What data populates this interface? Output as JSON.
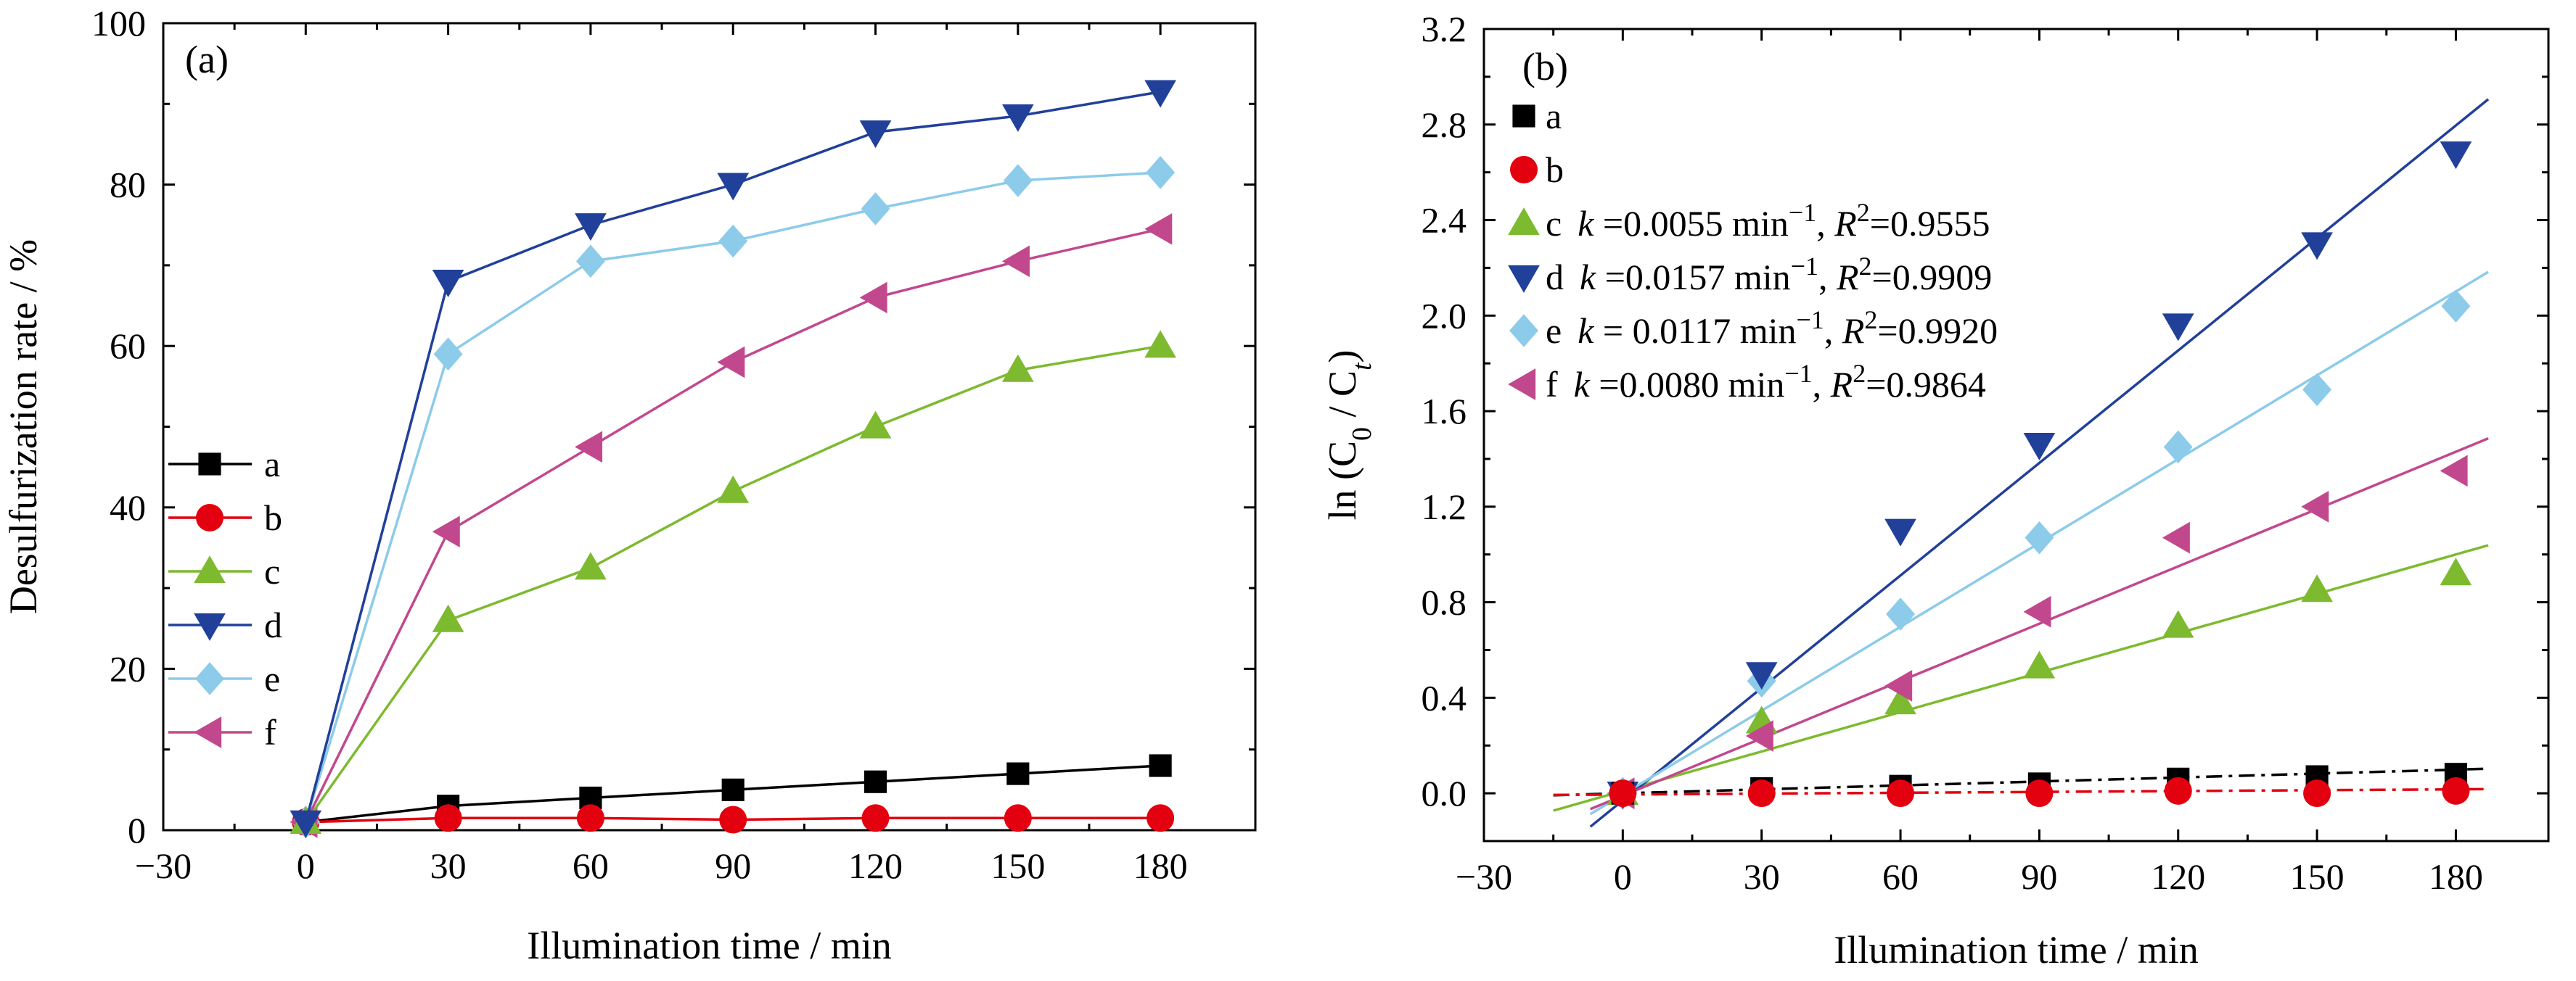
{
  "chart_data": [
    {
      "type": "line",
      "panel_label": "(a)",
      "xlabel": "Illumination time / min",
      "ylabel": "Desulfurization rate / %",
      "xlim": [
        -30,
        200
      ],
      "ylim": [
        0,
        100
      ],
      "xticks": [
        -30,
        0,
        30,
        60,
        90,
        120,
        150,
        180
      ],
      "yticks": [
        0,
        20,
        40,
        60,
        80,
        100
      ],
      "legend_position": "left",
      "x": [
        0,
        30,
        60,
        90,
        120,
        150,
        180
      ],
      "series": [
        {
          "name": "a",
          "color": "#000000",
          "marker": "square",
          "values": [
            1.0,
            3.0,
            4.0,
            5.0,
            6.0,
            7.0,
            8.0
          ]
        },
        {
          "name": "b",
          "color": "#e3000f",
          "marker": "circle",
          "values": [
            1.0,
            1.5,
            1.5,
            1.3,
            1.5,
            1.5,
            1.5
          ]
        },
        {
          "name": "c",
          "color": "#7dba2f",
          "marker": "triangle-up",
          "values": [
            1.0,
            26.0,
            32.5,
            42.0,
            50.0,
            57.0,
            60.0
          ]
        },
        {
          "name": "d",
          "color": "#21409a",
          "marker": "triangle-down",
          "values": [
            1.0,
            68.0,
            75.0,
            80.0,
            86.5,
            88.5,
            91.5
          ]
        },
        {
          "name": "e",
          "color": "#8ccbe9",
          "marker": "diamond",
          "values": [
            1.0,
            59.0,
            70.5,
            73.0,
            77.0,
            80.5,
            81.5
          ]
        },
        {
          "name": "f",
          "color": "#c2488e",
          "marker": "triangle-left",
          "values": [
            1.0,
            37.0,
            47.5,
            58.0,
            66.0,
            70.5,
            74.5
          ]
        }
      ]
    },
    {
      "type": "scatter",
      "panel_label": "(b)",
      "xlabel": "Illumination time / min",
      "ylabel": {
        "prefix": "ln (C",
        "sub0": "0",
        "mid": " / C",
        "subt": "t",
        "suffix": ")"
      },
      "xlim": [
        -30,
        200
      ],
      "ylim": [
        -0.2,
        3.2
      ],
      "xticks": [
        -30,
        0,
        30,
        60,
        90,
        120,
        150,
        180
      ],
      "yticks": [
        0.0,
        0.4,
        0.8,
        1.2,
        1.6,
        2.0,
        2.4,
        2.8,
        3.2
      ],
      "legend_position": "top-left",
      "x": [
        0,
        30,
        60,
        90,
        120,
        150,
        180
      ],
      "series": [
        {
          "name": "a",
          "color": "#000000",
          "marker": "square",
          "values": [
            0.0,
            0.02,
            0.03,
            0.04,
            0.06,
            0.07,
            0.08
          ],
          "fit": {
            "slope": 0.00055,
            "intercept": 0.0,
            "x_range": [
              -15,
              187
            ],
            "dash": "dashdot"
          }
        },
        {
          "name": "b",
          "color": "#e3000f",
          "marker": "circle",
          "values": [
            0.0,
            0.0,
            0.0,
            0.0,
            0.01,
            0.0,
            0.01
          ],
          "fit": {
            "slope": 0.00012,
            "intercept": -0.005,
            "x_range": [
              -15,
              187
            ],
            "dash": "dashdot"
          }
        },
        {
          "name": "c",
          "color": "#7dba2f",
          "marker": "triangle-up",
          "values": [
            0.0,
            0.3,
            0.38,
            0.53,
            0.7,
            0.85,
            0.92
          ],
          "fit": {
            "slope": 0.0055,
            "intercept": 0.01,
            "x_range": [
              -15,
              187
            ],
            "dash": "solid"
          },
          "legend_k": "0.0055",
          "legend_r2": "0.9555"
        },
        {
          "name": "d",
          "color": "#21409a",
          "marker": "triangle-down",
          "values": [
            0.0,
            0.5,
            1.1,
            1.46,
            1.96,
            2.3,
            2.68
          ],
          "fit": {
            "slope": 0.0157,
            "intercept": -0.03,
            "x_range": [
              -7,
              187
            ],
            "dash": "solid"
          },
          "legend_k": "0.0157",
          "legend_r2": "0.9909"
        },
        {
          "name": "e",
          "color": "#8ccbe9",
          "marker": "diamond",
          "values": [
            0.0,
            0.47,
            0.75,
            1.07,
            1.45,
            1.69,
            2.04
          ],
          "fit": {
            "slope": 0.0117,
            "intercept": -0.005,
            "x_range": [
              -7,
              187
            ],
            "dash": "solid"
          },
          "legend_k": " 0.0117",
          "legend_r2": "0.9920"
        },
        {
          "name": "f",
          "color": "#c2488e",
          "marker": "triangle-left",
          "values": [
            0.0,
            0.24,
            0.45,
            0.76,
            1.07,
            1.2,
            1.35
          ],
          "fit": {
            "slope": 0.008,
            "intercept": -0.01,
            "x_range": [
              -7,
              187
            ],
            "dash": "solid"
          },
          "legend_k": "0.0080",
          "legend_r2": "0.9864"
        }
      ],
      "legend_text": {
        "k_label": "k",
        "k_prefix": " =",
        "unit": " min",
        "unit_sup": "−1",
        "sep": ", ",
        "r_label": "R",
        "r_sup": "2",
        "r_eq": "="
      }
    }
  ]
}
